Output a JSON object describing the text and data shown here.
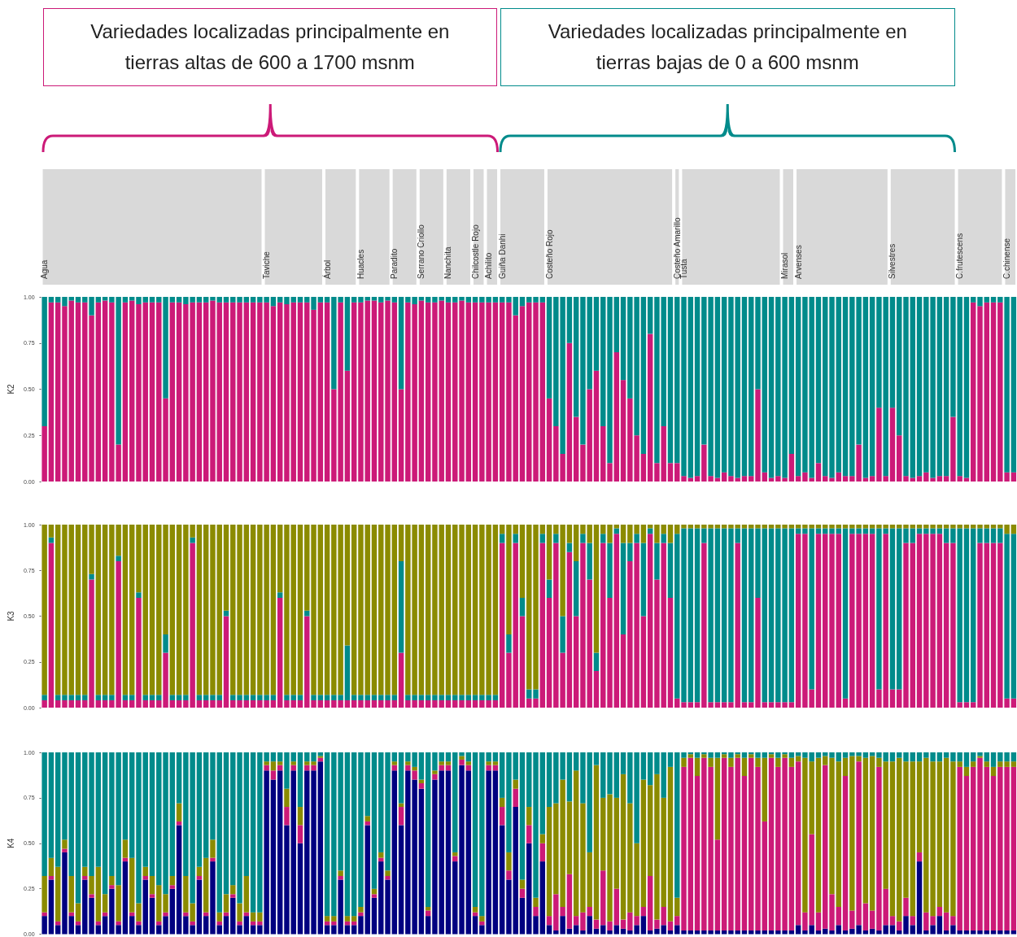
{
  "chart_data": [
    {
      "type": "bar",
      "stacked": true,
      "ylabel": "K2",
      "ylim": [
        0,
        1
      ],
      "yticks": [
        {
          "value": 0,
          "label": "0.00"
        },
        {
          "value": 0.25,
          "label": "0.25"
        },
        {
          "value": 0.5,
          "label": "0.50"
        },
        {
          "value": 0.75,
          "label": "0.75"
        },
        {
          "value": 1,
          "label": "1.00"
        }
      ],
      "annotations": [
        "Variedades localizadas principalmente en\ntierras altas de 600 a 1700 msnm",
        "Variedades localizadas principalmente en\ntierras bajas de 0 a 600 msnm"
      ],
      "categories": [
        "Agua",
        null,
        null,
        null,
        null,
        null,
        null,
        null,
        null,
        null,
        null,
        null,
        null,
        null,
        null,
        null,
        null,
        null,
        null,
        null,
        null,
        null,
        null,
        null,
        null,
        null,
        null,
        null,
        null,
        null,
        null,
        null,
        null,
        "Taviche",
        null,
        null,
        null,
        null,
        null,
        null,
        null,
        null,
        "Árbol",
        null,
        null,
        null,
        null,
        "Huacles",
        null,
        null,
        null,
        null,
        "Paradito",
        null,
        null,
        null,
        "Serrano Criollo",
        null,
        null,
        null,
        "Nanchita",
        null,
        null,
        null,
        "Chilcostle Rojo",
        null,
        "Achilito",
        null,
        "Guiña Danhi",
        null,
        null,
        null,
        null,
        null,
        null,
        "Costeño Rojo",
        null,
        null,
        null,
        null,
        null,
        null,
        null,
        null,
        null,
        null,
        null,
        null,
        null,
        null,
        null,
        null,
        null,
        null,
        "Costeño Amarillo",
        "Tusta",
        null,
        null,
        null,
        null,
        null,
        null,
        null,
        null,
        null,
        null,
        null,
        null,
        null,
        null,
        "Mirasol",
        null,
        "Arvenses",
        null,
        null,
        null,
        null,
        null,
        null,
        null,
        null,
        null,
        null,
        null,
        null,
        null,
        "Silvestres",
        null,
        null,
        null,
        null,
        null,
        null,
        null,
        null,
        null,
        "C.frutescens",
        null,
        null,
        null,
        null,
        null,
        null,
        "C.chinense",
        null
      ],
      "series": [
        {
          "color": "#cc1a78",
          "values": [
            0.3,
            0.97,
            0.97,
            0.95,
            0.98,
            0.97,
            0.97,
            0.9,
            0.97,
            0.98,
            0.97,
            0.2,
            0.97,
            0.98,
            0.96,
            0.97,
            0.97,
            0.97,
            0.45,
            0.97,
            0.97,
            0.96,
            0.97,
            0.97,
            0.97,
            0.98,
            0.97,
            0.97,
            0.97,
            0.97,
            0.97,
            0.97,
            0.97,
            0.97,
            0.95,
            0.97,
            0.96,
            0.97,
            0.97,
            0.97,
            0.93,
            0.97,
            0.97,
            0.5,
            0.97,
            0.6,
            0.97,
            0.97,
            0.98,
            0.98,
            0.97,
            0.98,
            0.97,
            0.5,
            0.97,
            0.96,
            0.98,
            0.97,
            0.97,
            0.98,
            0.97,
            0.97,
            0.98,
            0.97,
            0.97,
            0.97,
            0.97,
            0.97,
            0.97,
            0.97,
            0.9,
            0.95,
            0.97,
            0.97,
            0.97,
            0.45,
            0.3,
            0.15,
            0.75,
            0.35,
            0.2,
            0.5,
            0.6,
            0.3,
            0.1,
            0.7,
            0.55,
            0.45,
            0.25,
            0.15,
            0.8,
            0.1,
            0.3,
            0.1,
            0.1,
            0.03,
            0.02,
            0.03,
            0.2,
            0.03,
            0.02,
            0.05,
            0.03,
            0.02,
            0.03,
            0.03,
            0.5,
            0.05,
            0.02,
            0.03,
            0.02,
            0.15,
            0.03,
            0.05,
            0.02,
            0.1,
            0.03,
            0.02,
            0.05,
            0.03,
            0.03,
            0.2,
            0.02,
            0.03,
            0.4,
            0.03,
            0.4,
            0.25,
            0.03,
            0.02,
            0.03,
            0.05,
            0.02,
            0.03,
            0.03,
            0.35,
            0.03,
            0.02,
            0.97,
            0.95,
            0.97,
            0.97,
            0.97,
            0.05,
            0.05
          ]
        },
        {
          "color": "#008b8b",
          "values": [
            0.7,
            0.03,
            0.03,
            0.05,
            0.02,
            0.03,
            0.03,
            0.1,
            0.03,
            0.02,
            0.03,
            0.8,
            0.03,
            0.02,
            0.04,
            0.03,
            0.03,
            0.03,
            0.55,
            0.03,
            0.03,
            0.04,
            0.03,
            0.03,
            0.03,
            0.02,
            0.03,
            0.03,
            0.03,
            0.03,
            0.03,
            0.03,
            0.03,
            0.03,
            0.05,
            0.03,
            0.04,
            0.03,
            0.03,
            0.03,
            0.07,
            0.03,
            0.03,
            0.5,
            0.03,
            0.4,
            0.03,
            0.03,
            0.02,
            0.02,
            0.03,
            0.02,
            0.03,
            0.5,
            0.03,
            0.04,
            0.02,
            0.03,
            0.03,
            0.02,
            0.03,
            0.03,
            0.02,
            0.03,
            0.03,
            0.03,
            0.03,
            0.03,
            0.03,
            0.03,
            0.1,
            0.05,
            0.03,
            0.03,
            0.03,
            0.55,
            0.7,
            0.85,
            0.25,
            0.65,
            0.8,
            0.5,
            0.4,
            0.7,
            0.9,
            0.3,
            0.45,
            0.55,
            0.75,
            0.85,
            0.2,
            0.9,
            0.7,
            0.9,
            0.9,
            0.97,
            0.98,
            0.97,
            0.8,
            0.97,
            0.98,
            0.95,
            0.97,
            0.98,
            0.97,
            0.97,
            0.5,
            0.95,
            0.98,
            0.97,
            0.98,
            0.85,
            0.97,
            0.95,
            0.98,
            0.9,
            0.97,
            0.98,
            0.95,
            0.97,
            0.97,
            0.8,
            0.98,
            0.97,
            0.6,
            0.97,
            0.6,
            0.75,
            0.97,
            0.98,
            0.97,
            0.95,
            0.98,
            0.97,
            0.97,
            0.65,
            0.97,
            0.98,
            0.03,
            0.05,
            0.03,
            0.03,
            0.03,
            0.95,
            0.95
          ]
        }
      ]
    },
    {
      "type": "bar",
      "stacked": true,
      "ylabel": "K3",
      "tick_labels": "y",
      "ylim": [
        0,
        1
      ],
      "yticks": [
        {
          "value": 0,
          "label": "0.00"
        },
        {
          "value": 0.25,
          "label": "0.25"
        },
        {
          "value": 0.5,
          "label": "0.50"
        },
        {
          "value": 0.75,
          "label": "0.75"
        },
        {
          "value": 1,
          "label": "1.00"
        }
      ],
      "categories": [
        null,
        null,
        null,
        null,
        null,
        null,
        null,
        null,
        null,
        null,
        null,
        null,
        null,
        null,
        null,
        null,
        null,
        null,
        null,
        null,
        null,
        null,
        null,
        null,
        null,
        null,
        null,
        null,
        null,
        null,
        null,
        null,
        null,
        null,
        null,
        null,
        null,
        null,
        null,
        null,
        null,
        null,
        null,
        null,
        null,
        null,
        null,
        null,
        null,
        null,
        null,
        null,
        null,
        null,
        null,
        null,
        null,
        null,
        null,
        null,
        null,
        null,
        null,
        null,
        null,
        null,
        null,
        null,
        null,
        null,
        null,
        null,
        null,
        null,
        null,
        null,
        null,
        null,
        null,
        null,
        null,
        null,
        null,
        null,
        null,
        null,
        null,
        null,
        null,
        null,
        null,
        null,
        null,
        null,
        null,
        null,
        null,
        null,
        null,
        null,
        null,
        null,
        null,
        null,
        null,
        null,
        null,
        null,
        null,
        null,
        null,
        null,
        null,
        null,
        null,
        null,
        null,
        null,
        null,
        null,
        null,
        null,
        null,
        null,
        null,
        null,
        null,
        null,
        null,
        null,
        null,
        null,
        null,
        null,
        null,
        null,
        null,
        null,
        null,
        null,
        null,
        null,
        null,
        null,
        null
      ],
      "series": [
        {
          "color": "#cc1a78",
          "values": [
            0.04,
            0.9,
            0.04,
            0.04,
            0.04,
            0.04,
            0.04,
            0.7,
            0.04,
            0.04,
            0.04,
            0.8,
            0.04,
            0.04,
            0.6,
            0.04,
            0.04,
            0.04,
            0.3,
            0.04,
            0.04,
            0.04,
            0.9,
            0.04,
            0.04,
            0.04,
            0.04,
            0.5,
            0.04,
            0.04,
            0.04,
            0.04,
            0.04,
            0.04,
            0.04,
            0.6,
            0.04,
            0.04,
            0.04,
            0.5,
            0.04,
            0.04,
            0.04,
            0.04,
            0.04,
            0.04,
            0.04,
            0.04,
            0.04,
            0.04,
            0.04,
            0.04,
            0.04,
            0.3,
            0.04,
            0.04,
            0.04,
            0.04,
            0.04,
            0.04,
            0.04,
            0.04,
            0.04,
            0.04,
            0.04,
            0.04,
            0.04,
            0.04,
            0.9,
            0.3,
            0.9,
            0.5,
            0.05,
            0.05,
            0.9,
            0.6,
            0.9,
            0.3,
            0.85,
            0.5,
            0.9,
            0.7,
            0.2,
            0.9,
            0.6,
            0.95,
            0.4,
            0.8,
            0.9,
            0.5,
            0.95,
            0.7,
            0.9,
            0.6,
            0.05,
            0.03,
            0.03,
            0.03,
            0.9,
            0.03,
            0.03,
            0.03,
            0.03,
            0.9,
            0.03,
            0.03,
            0.6,
            0.03,
            0.03,
            0.03,
            0.03,
            0.03,
            0.95,
            0.95,
            0.1,
            0.95,
            0.95,
            0.95,
            0.95,
            0.05,
            0.95,
            0.95,
            0.95,
            0.95,
            0.1,
            0.95,
            0.1,
            0.1,
            0.9,
            0.9,
            0.95,
            0.95,
            0.95,
            0.95,
            0.9,
            0.9,
            0.03,
            0.03,
            0.03,
            0.9,
            0.9,
            0.9,
            0.9,
            0.05,
            0.05
          ]
        },
        {
          "color": "#008b8b",
          "values": [
            0.03,
            0.03,
            0.03,
            0.03,
            0.03,
            0.03,
            0.03,
            0.03,
            0.03,
            0.03,
            0.03,
            0.03,
            0.03,
            0.03,
            0.03,
            0.03,
            0.03,
            0.03,
            0.1,
            0.03,
            0.03,
            0.03,
            0.03,
            0.03,
            0.03,
            0.03,
            0.03,
            0.03,
            0.03,
            0.03,
            0.03,
            0.03,
            0.03,
            0.03,
            0.03,
            0.03,
            0.03,
            0.03,
            0.03,
            0.03,
            0.03,
            0.03,
            0.03,
            0.03,
            0.03,
            0.3,
            0.03,
            0.03,
            0.03,
            0.03,
            0.03,
            0.03,
            0.03,
            0.5,
            0.03,
            0.03,
            0.03,
            0.03,
            0.03,
            0.03,
            0.03,
            0.03,
            0.03,
            0.03,
            0.03,
            0.03,
            0.03,
            0.03,
            0.05,
            0.1,
            0.05,
            0.1,
            0.05,
            0.05,
            0.05,
            0.1,
            0.05,
            0.2,
            0.05,
            0.3,
            0.05,
            0.2,
            0.1,
            0.05,
            0.3,
            0.03,
            0.5,
            0.1,
            0.05,
            0.4,
            0.03,
            0.2,
            0.05,
            0.3,
            0.9,
            0.95,
            0.95,
            0.95,
            0.08,
            0.95,
            0.95,
            0.95,
            0.95,
            0.08,
            0.95,
            0.95,
            0.38,
            0.95,
            0.95,
            0.95,
            0.95,
            0.95,
            0.03,
            0.03,
            0.88,
            0.03,
            0.03,
            0.03,
            0.03,
            0.93,
            0.03,
            0.03,
            0.03,
            0.03,
            0.88,
            0.03,
            0.88,
            0.88,
            0.08,
            0.08,
            0.03,
            0.03,
            0.03,
            0.03,
            0.08,
            0.08,
            0.95,
            0.95,
            0.95,
            0.08,
            0.08,
            0.08,
            0.08,
            0.9,
            0.9
          ]
        },
        {
          "color": "#8b8b00",
          "values": [
            0.93,
            0.07,
            0.93,
            0.93,
            0.93,
            0.93,
            0.93,
            0.27,
            0.93,
            0.93,
            0.93,
            0.17,
            0.93,
            0.93,
            0.37,
            0.93,
            0.93,
            0.93,
            0.6,
            0.93,
            0.93,
            0.93,
            0.07,
            0.93,
            0.93,
            0.93,
            0.93,
            0.47,
            0.93,
            0.93,
            0.93,
            0.93,
            0.93,
            0.93,
            0.93,
            0.37,
            0.93,
            0.93,
            0.93,
            0.47,
            0.93,
            0.93,
            0.93,
            0.93,
            0.93,
            0.66,
            0.93,
            0.93,
            0.93,
            0.93,
            0.93,
            0.93,
            0.93,
            0.2,
            0.93,
            0.93,
            0.93,
            0.93,
            0.93,
            0.93,
            0.93,
            0.93,
            0.93,
            0.93,
            0.93,
            0.93,
            0.93,
            0.93,
            0.05,
            0.6,
            0.05,
            0.4,
            0.9,
            0.9,
            0.05,
            0.3,
            0.05,
            0.5,
            0.1,
            0.2,
            0.05,
            0.1,
            0.7,
            0.05,
            0.1,
            0.02,
            0.1,
            0.1,
            0.05,
            0.1,
            0.02,
            0.1,
            0.05,
            0.1,
            0.05,
            0.02,
            0.02,
            0.02,
            0.02,
            0.02,
            0.02,
            0.02,
            0.02,
            0.02,
            0.02,
            0.02,
            0.02,
            0.02,
            0.02,
            0.02,
            0.02,
            0.02,
            0.02,
            0.02,
            0.02,
            0.02,
            0.02,
            0.02,
            0.02,
            0.02,
            0.02,
            0.02,
            0.02,
            0.02,
            0.02,
            0.02,
            0.02,
            0.02,
            0.02,
            0.02,
            0.02,
            0.02,
            0.02,
            0.02,
            0.02,
            0.02,
            0.02,
            0.02,
            0.02,
            0.02,
            0.02,
            0.02,
            0.02,
            0.05,
            0.05
          ]
        }
      ]
    },
    {
      "type": "bar",
      "stacked": true,
      "ylabel": "K4",
      "tick_labels": "y",
      "ylim": [
        0,
        1
      ],
      "yticks": [
        {
          "value": 0,
          "label": "0.00"
        },
        {
          "value": 0.25,
          "label": "0.25"
        },
        {
          "value": 0.5,
          "label": "0.50"
        },
        {
          "value": 0.75,
          "label": "0.75"
        },
        {
          "value": 1,
          "label": "1.00"
        }
      ],
      "categories": [
        null,
        null,
        null,
        null,
        null,
        null,
        null,
        null,
        null,
        null,
        null,
        null,
        null,
        null,
        null,
        null,
        null,
        null,
        null,
        null,
        null,
        null,
        null,
        null,
        null,
        null,
        null,
        null,
        null,
        null,
        null,
        null,
        null,
        null,
        null,
        null,
        null,
        null,
        null,
        null,
        null,
        null,
        null,
        null,
        null,
        null,
        null,
        null,
        null,
        null,
        null,
        null,
        null,
        null,
        null,
        null,
        null,
        null,
        null,
        null,
        null,
        null,
        null,
        null,
        null,
        null,
        null,
        null,
        null,
        null,
        null,
        null,
        null,
        null,
        null,
        null,
        null,
        null,
        null,
        null,
        null,
        null,
        null,
        null,
        null,
        null,
        null,
        null,
        null,
        null,
        null,
        null,
        null,
        null,
        null,
        null,
        null,
        null,
        null,
        null,
        null,
        null,
        null,
        null,
        null,
        null,
        null,
        null,
        null,
        null,
        null,
        null,
        null,
        null,
        null,
        null,
        null,
        null,
        null,
        null,
        null,
        null,
        null,
        null,
        null,
        null,
        null,
        null,
        null,
        null,
        null,
        null,
        null,
        null,
        null,
        null,
        null,
        null,
        null,
        null,
        null,
        null,
        null,
        null,
        null
      ],
      "series": [
        {
          "color": "#000080",
          "values": [
            0.1,
            0.3,
            0.05,
            0.45,
            0.1,
            0.05,
            0.3,
            0.2,
            0.05,
            0.1,
            0.25,
            0.05,
            0.4,
            0.1,
            0.05,
            0.3,
            0.2,
            0.05,
            0.1,
            0.25,
            0.6,
            0.1,
            0.05,
            0.3,
            0.1,
            0.4,
            0.05,
            0.1,
            0.2,
            0.05,
            0.1,
            0.05,
            0.05,
            0.9,
            0.85,
            0.9,
            0.6,
            0.9,
            0.5,
            0.9,
            0.9,
            0.95,
            0.05,
            0.05,
            0.3,
            0.05,
            0.05,
            0.1,
            0.6,
            0.2,
            0.4,
            0.3,
            0.9,
            0.6,
            0.9,
            0.85,
            0.8,
            0.1,
            0.85,
            0.9,
            0.9,
            0.4,
            0.93,
            0.9,
            0.1,
            0.05,
            0.9,
            0.9,
            0.6,
            0.3,
            0.7,
            0.2,
            0.5,
            0.1,
            0.4,
            0.05,
            0.02,
            0.1,
            0.03,
            0.05,
            0.02,
            0.1,
            0.03,
            0.05,
            0.02,
            0.05,
            0.03,
            0.02,
            0.05,
            0.1,
            0.02,
            0.03,
            0.05,
            0.02,
            0.05,
            0.02,
            0.02,
            0.02,
            0.02,
            0.02,
            0.02,
            0.02,
            0.02,
            0.02,
            0.02,
            0.02,
            0.02,
            0.02,
            0.02,
            0.02,
            0.02,
            0.02,
            0.05,
            0.02,
            0.05,
            0.02,
            0.03,
            0.02,
            0.05,
            0.02,
            0.03,
            0.05,
            0.02,
            0.03,
            0.02,
            0.05,
            0.05,
            0.02,
            0.1,
            0.05,
            0.4,
            0.02,
            0.05,
            0.1,
            0.02,
            0.05,
            0.02,
            0.02,
            0.02,
            0.02,
            0.02,
            0.02,
            0.02,
            0.02,
            0.02
          ]
        },
        {
          "color": "#cc1a78",
          "values": [
            0.02,
            0.02,
            0.02,
            0.02,
            0.02,
            0.02,
            0.02,
            0.02,
            0.02,
            0.02,
            0.02,
            0.02,
            0.02,
            0.02,
            0.02,
            0.02,
            0.02,
            0.02,
            0.02,
            0.02,
            0.02,
            0.02,
            0.02,
            0.02,
            0.02,
            0.02,
            0.02,
            0.02,
            0.02,
            0.02,
            0.02,
            0.02,
            0.02,
            0.03,
            0.05,
            0.03,
            0.1,
            0.03,
            0.1,
            0.03,
            0.03,
            0.02,
            0.02,
            0.02,
            0.02,
            0.02,
            0.02,
            0.02,
            0.02,
            0.02,
            0.02,
            0.02,
            0.03,
            0.1,
            0.03,
            0.05,
            0.03,
            0.03,
            0.03,
            0.03,
            0.03,
            0.03,
            0.03,
            0.03,
            0.02,
            0.02,
            0.03,
            0.03,
            0.1,
            0.05,
            0.1,
            0.05,
            0.1,
            0.05,
            0.1,
            0.05,
            0.2,
            0.05,
            0.3,
            0.05,
            0.1,
            0.05,
            0.05,
            0.3,
            0.05,
            0.2,
            0.05,
            0.1,
            0.05,
            0.05,
            0.3,
            0.05,
            0.1,
            0.05,
            0.05,
            0.9,
            0.95,
            0.85,
            0.95,
            0.9,
            0.5,
            0.95,
            0.9,
            0.95,
            0.85,
            0.95,
            0.9,
            0.6,
            0.95,
            0.9,
            0.95,
            0.9,
            0.9,
            0.1,
            0.5,
            0.1,
            0.9,
            0.2,
            0.1,
            0.85,
            0.1,
            0.9,
            0.15,
            0.1,
            0.9,
            0.2,
            0.05,
            0.05,
            0.1,
            0.05,
            0.05,
            0.1,
            0.05,
            0.05,
            0.1,
            0.05,
            0.9,
            0.85,
            0.9,
            0.95,
            0.9,
            0.85,
            0.9,
            0.9,
            0.9
          ]
        },
        {
          "color": "#8b8b00",
          "values": [
            0.2,
            0.1,
            0.3,
            0.05,
            0.2,
            0.1,
            0.05,
            0.1,
            0.3,
            0.1,
            0.05,
            0.2,
            0.1,
            0.3,
            0.1,
            0.05,
            0.1,
            0.2,
            0.1,
            0.05,
            0.1,
            0.2,
            0.1,
            0.05,
            0.3,
            0.1,
            0.05,
            0.1,
            0.05,
            0.1,
            0.2,
            0.05,
            0.05,
            0.02,
            0.05,
            0.02,
            0.1,
            0.02,
            0.1,
            0.02,
            0.02,
            0.01,
            0.03,
            0.03,
            0.03,
            0.03,
            0.03,
            0.03,
            0.03,
            0.03,
            0.03,
            0.03,
            0.02,
            0.02,
            0.02,
            0.02,
            0.02,
            0.02,
            0.02,
            0.02,
            0.02,
            0.02,
            0.02,
            0.02,
            0.03,
            0.03,
            0.02,
            0.02,
            0.05,
            0.1,
            0.05,
            0.05,
            0.1,
            0.05,
            0.05,
            0.6,
            0.5,
            0.7,
            0.4,
            0.8,
            0.6,
            0.3,
            0.85,
            0.4,
            0.7,
            0.5,
            0.8,
            0.6,
            0.4,
            0.7,
            0.5,
            0.8,
            0.6,
            0.85,
            0.1,
            0.05,
            0.02,
            0.1,
            0.02,
            0.05,
            0.45,
            0.02,
            0.05,
            0.02,
            0.1,
            0.02,
            0.05,
            0.35,
            0.02,
            0.05,
            0.02,
            0.05,
            0.03,
            0.85,
            0.4,
            0.85,
            0.05,
            0.75,
            0.8,
            0.1,
            0.85,
            0.03,
            0.8,
            0.85,
            0.05,
            0.7,
            0.85,
            0.9,
            0.75,
            0.85,
            0.5,
            0.85,
            0.85,
            0.8,
            0.85,
            0.85,
            0.03,
            0.05,
            0.03,
            0.01,
            0.03,
            0.05,
            0.03,
            0.03,
            0.03
          ]
        },
        {
          "color": "#008b8b",
          "values": [
            0.68,
            0.58,
            0.63,
            0.48,
            0.68,
            0.83,
            0.63,
            0.68,
            0.63,
            0.78,
            0.68,
            0.73,
            0.48,
            0.58,
            0.83,
            0.63,
            0.68,
            0.73,
            0.78,
            0.68,
            0.28,
            0.68,
            0.83,
            0.63,
            0.58,
            0.48,
            0.88,
            0.78,
            0.73,
            0.83,
            0.68,
            0.88,
            0.88,
            0.05,
            0.05,
            0.05,
            0.2,
            0.05,
            0.3,
            0.05,
            0.05,
            0.02,
            0.9,
            0.9,
            0.65,
            0.9,
            0.9,
            0.85,
            0.35,
            0.75,
            0.55,
            0.65,
            0.05,
            0.28,
            0.05,
            0.08,
            0.15,
            0.85,
            0.1,
            0.05,
            0.05,
            0.55,
            0.02,
            0.05,
            0.85,
            0.9,
            0.05,
            0.05,
            0.25,
            0.55,
            0.15,
            0.7,
            0.3,
            0.8,
            0.45,
            0.3,
            0.28,
            0.15,
            0.27,
            0.1,
            0.28,
            0.55,
            0.07,
            0.25,
            0.23,
            0.25,
            0.12,
            0.28,
            0.5,
            0.15,
            0.18,
            0.12,
            0.25,
            0.08,
            0.8,
            0.03,
            0.01,
            0.03,
            0.01,
            0.03,
            0.03,
            0.01,
            0.03,
            0.01,
            0.03,
            0.01,
            0.03,
            0.03,
            0.01,
            0.03,
            0.01,
            0.03,
            0.02,
            0.03,
            0.05,
            0.03,
            0.02,
            0.03,
            0.05,
            0.03,
            0.02,
            0.02,
            0.03,
            0.02,
            0.03,
            0.05,
            0.05,
            0.03,
            0.05,
            0.05,
            0.05,
            0.03,
            0.05,
            0.05,
            0.03,
            0.05,
            0.05,
            0.08,
            0.05,
            0.02,
            0.05,
            0.08,
            0.05,
            0.05,
            0.05
          ]
        }
      ]
    }
  ]
}
